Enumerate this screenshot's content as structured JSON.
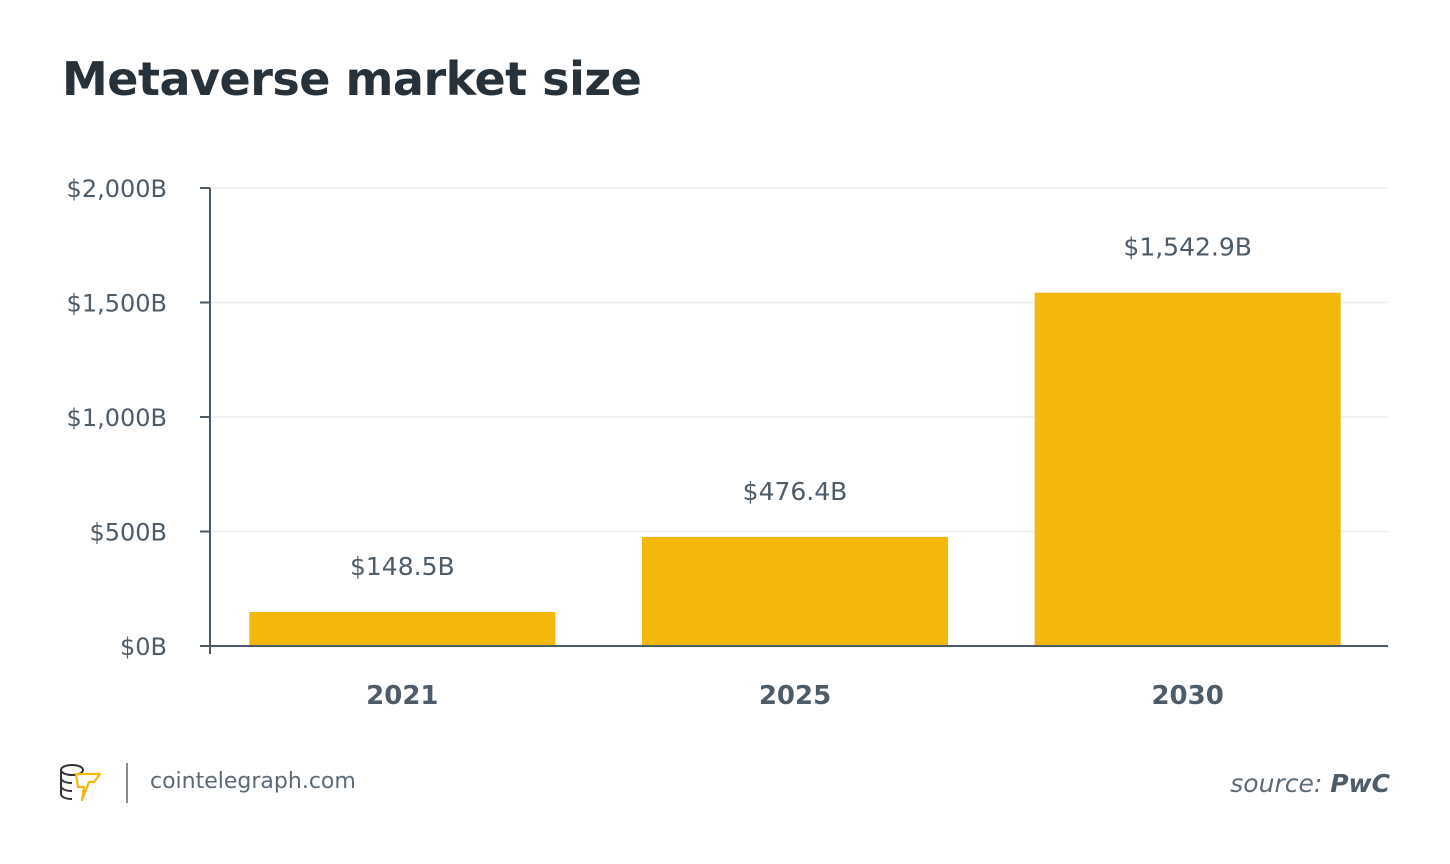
{
  "chart_data": {
    "type": "bar",
    "title": "Metaverse market size",
    "categories": [
      "2021",
      "2025",
      "2030"
    ],
    "values": [
      148.5,
      476.4,
      1542.9
    ],
    "data_labels": [
      "$148.5B",
      "$476.4B",
      "$1,542.9B"
    ],
    "xlabel": "",
    "ylabel": "",
    "ylim": [
      0,
      2000
    ],
    "yticks": [
      0,
      500,
      1000,
      1500,
      2000
    ],
    "ytick_labels": [
      "$0B",
      "$500B",
      "$1,000B",
      "$1,500B",
      "$2,000B"
    ],
    "grid": true,
    "bar_color": "#f4b70c"
  },
  "footer": {
    "site": "cointelegraph.com",
    "source_prefix": "source:",
    "source_name": "PwC",
    "logo": "cointelegraph-logo"
  }
}
